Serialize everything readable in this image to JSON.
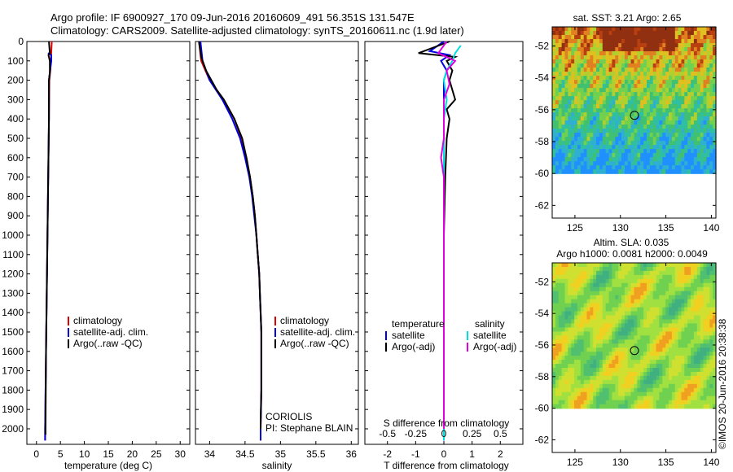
{
  "title": {
    "line1": "Argo profile: IF 6900927_170 09-Jun-2016 20160609_491 56.351S 131.547E",
    "line2": "Climatology: CARS2009. Satellite-adjusted climatology: synTS_20160611.nc (1.9d later)"
  },
  "chart_data": [
    {
      "type": "line",
      "panel": "temperature",
      "xlabel": "temperature (deg C)",
      "ylabel": "",
      "xlim": [
        -2,
        32
      ],
      "ylim": [
        2080,
        0
      ],
      "xticks": [
        0,
        5,
        10,
        15,
        20,
        25,
        30
      ],
      "yticks": [
        0,
        100,
        200,
        300,
        400,
        500,
        600,
        700,
        800,
        900,
        1000,
        1100,
        1200,
        1300,
        1400,
        1500,
        1600,
        1700,
        1800,
        1900,
        2000
      ],
      "legend": [
        "climatology",
        "satellite-adj. clim.",
        "Argo(..raw -QC)"
      ],
      "legend_placement": "center-right",
      "series": [
        {
          "name": "climatology",
          "color": "#e00000",
          "points": [
            [
              3.2,
              0
            ],
            [
              3.1,
              50
            ],
            [
              3.0,
              100
            ],
            [
              2.9,
              150
            ],
            [
              2.7,
              200
            ],
            [
              2.6,
              400
            ],
            [
              2.4,
              800
            ],
            [
              2.2,
              1200
            ],
            [
              2.0,
              1600
            ],
            [
              1.8,
              2000
            ],
            [
              1.8,
              2060
            ]
          ]
        },
        {
          "name": "satellite-adj. clim.",
          "color": "#0000e0",
          "points": [
            [
              2.4,
              60
            ],
            [
              3.1,
              70
            ],
            [
              3.1,
              100
            ],
            [
              2.8,
              160
            ],
            [
              2.6,
              200
            ],
            [
              2.6,
              400
            ],
            [
              2.4,
              800
            ],
            [
              2.2,
              1200
            ],
            [
              2.0,
              1600
            ],
            [
              1.8,
              2000
            ],
            [
              1.8,
              2060
            ]
          ]
        },
        {
          "name": "Argo(..raw -QC)",
          "color": "#000000",
          "points": [
            [
              2.6,
              0
            ],
            [
              2.8,
              60
            ],
            [
              2.5,
              70
            ],
            [
              2.8,
              100
            ],
            [
              2.8,
              160
            ],
            [
              2.6,
              200
            ],
            [
              2.6,
              400
            ],
            [
              2.4,
              800
            ],
            [
              2.2,
              1200
            ],
            [
              2.0,
              1600
            ],
            [
              1.9,
              2000
            ],
            [
              1.9,
              2030
            ]
          ]
        }
      ]
    },
    {
      "type": "line",
      "panel": "salinity",
      "xlabel": "salinity",
      "ylabel": "",
      "xlim": [
        33.8,
        36.1
      ],
      "ylim": [
        2080,
        0
      ],
      "xticks": [
        34,
        34.5,
        35,
        35.5,
        36
      ],
      "legend": [
        "climatology",
        "satellite-adj. clim.",
        "Argo(..raw -QC)"
      ],
      "legend_placement": "center-right",
      "annotations": [
        "CORIOLIS",
        "PI: Stephane BLAIN"
      ],
      "series": [
        {
          "name": "climatology",
          "color": "#e00000",
          "points": [
            [
              33.85,
              0
            ],
            [
              33.88,
              100
            ],
            [
              34.0,
              200
            ],
            [
              34.2,
              300
            ],
            [
              34.35,
              400
            ],
            [
              34.45,
              500
            ],
            [
              34.52,
              600
            ],
            [
              34.57,
              700
            ],
            [
              34.61,
              800
            ],
            [
              34.64,
              900
            ],
            [
              34.66,
              1000
            ],
            [
              34.68,
              1100
            ],
            [
              34.7,
              1200
            ],
            [
              34.71,
              1300
            ],
            [
              34.72,
              1400
            ],
            [
              34.73,
              1500
            ],
            [
              34.73,
              1600
            ],
            [
              34.73,
              1800
            ],
            [
              34.72,
              2000
            ],
            [
              34.72,
              2060
            ]
          ]
        },
        {
          "name": "satellite-adj. clim.",
          "color": "#0000e0",
          "points": [
            [
              33.87,
              0
            ],
            [
              33.9,
              100
            ],
            [
              34.0,
              200
            ],
            [
              34.18,
              300
            ],
            [
              34.32,
              400
            ],
            [
              34.43,
              500
            ],
            [
              34.5,
              600
            ],
            [
              34.56,
              700
            ],
            [
              34.6,
              800
            ],
            [
              34.63,
              900
            ],
            [
              34.66,
              1000
            ],
            [
              34.68,
              1100
            ],
            [
              34.7,
              1200
            ],
            [
              34.71,
              1300
            ],
            [
              34.72,
              1400
            ],
            [
              34.73,
              1500
            ],
            [
              34.73,
              1600
            ],
            [
              34.73,
              1800
            ],
            [
              34.72,
              2000
            ],
            [
              34.72,
              2060
            ]
          ]
        },
        {
          "name": "Argo(..raw -QC)",
          "color": "#000000",
          "points": [
            [
              33.85,
              0
            ],
            [
              33.88,
              80
            ],
            [
              33.95,
              150
            ],
            [
              34.1,
              250
            ],
            [
              34.2,
              300
            ],
            [
              34.35,
              400
            ],
            [
              34.46,
              500
            ],
            [
              34.52,
              600
            ],
            [
              34.57,
              700
            ],
            [
              34.61,
              800
            ],
            [
              34.64,
              900
            ],
            [
              34.66,
              1000
            ],
            [
              34.68,
              1100
            ],
            [
              34.7,
              1200
            ],
            [
              34.71,
              1300
            ],
            [
              34.72,
              1400
            ],
            [
              34.73,
              1500
            ],
            [
              34.73,
              1600
            ],
            [
              34.73,
              1800
            ],
            [
              34.72,
              1950
            ],
            [
              34.72,
              2000
            ]
          ]
        }
      ]
    },
    {
      "type": "line",
      "panel": "difference",
      "xlabel": "T difference from climatology",
      "xlabel_top": "S difference from climatology",
      "xlim": [
        -2.8,
        2.8
      ],
      "ylim": [
        2080,
        0
      ],
      "xticks_T": [
        -2,
        -1,
        0,
        1,
        2
      ],
      "xticks_S": [
        -0.5,
        -0.25,
        0,
        0.25,
        0.5
      ],
      "legend_temperature": {
        "heading": "temperature",
        "items": [
          "satellite",
          "Argo(-adj)"
        ]
      },
      "legend_salinity": {
        "heading": "salinity",
        "items": [
          "satellite",
          "Argo(-adj)"
        ]
      },
      "legend_placement": "center",
      "series": [
        {
          "name": "temperature satellite",
          "color": "#0000e0",
          "points": [
            [
              0,
              0
            ],
            [
              -0.5,
              50
            ],
            [
              0.2,
              70
            ],
            [
              -0.1,
              100
            ],
            [
              0.1,
              150
            ],
            [
              0,
              200
            ],
            [
              0,
              300
            ],
            [
              0,
              500
            ],
            [
              0,
              1000
            ],
            [
              0,
              1500
            ],
            [
              0,
              2060
            ]
          ]
        },
        {
          "name": "temperature Argo(-adj)",
          "color": "#000000",
          "points": [
            [
              0.2,
              0
            ],
            [
              -0.9,
              60
            ],
            [
              0.4,
              80
            ],
            [
              0.1,
              100
            ],
            [
              0.3,
              150
            ],
            [
              0.2,
              200
            ],
            [
              0.4,
              300
            ],
            [
              0.1,
              350
            ],
            [
              0.2,
              400
            ],
            [
              0.1,
              500
            ],
            [
              0.05,
              700
            ],
            [
              0,
              1000
            ],
            [
              0,
              1500
            ],
            [
              0,
              2000
            ]
          ]
        },
        {
          "name": "salinity satellite",
          "color": "#00e0e0",
          "points": [
            [
              0.6,
              20
            ],
            [
              0.4,
              60
            ],
            [
              0.3,
              100
            ],
            [
              0.1,
              150
            ],
            [
              0,
              200
            ],
            [
              0.1,
              300
            ],
            [
              0,
              400
            ],
            [
              0,
              700
            ],
            [
              0,
              1000
            ],
            [
              0,
              1500
            ],
            [
              0,
              2060
            ]
          ]
        },
        {
          "name": "salinity Argo(-adj)",
          "color": "#e000e0",
          "points": [
            [
              0.1,
              0
            ],
            [
              -0.2,
              60
            ],
            [
              0.4,
              100
            ],
            [
              0.1,
              150
            ],
            [
              0.2,
              220
            ],
            [
              0,
              300
            ],
            [
              0,
              500
            ],
            [
              -0.1,
              600
            ],
            [
              0,
              700
            ],
            [
              0,
              1000
            ],
            [
              0,
              1500
            ],
            [
              0,
              2000
            ]
          ]
        }
      ]
    },
    {
      "type": "heatmap",
      "panel": "sst-map",
      "title": "sat. SST: 3.21  Argo: 2.65",
      "xlim": [
        122.5,
        140.5
      ],
      "ylim": [
        -62.8,
        -50.8
      ],
      "xticks": [
        125,
        130,
        135,
        140
      ],
      "yticks": [
        -52,
        -54,
        -56,
        -58,
        -60,
        -62
      ],
      "marker": {
        "lon": 131.547,
        "lat": -56.351
      },
      "data_south_limit": -60
    },
    {
      "type": "heatmap",
      "panel": "sla-map",
      "title": "Altim. SLA: 0.035",
      "subtitle": "Argo h1000: 0.0081 h2000: 0.0049",
      "xlim": [
        122.5,
        140.5
      ],
      "ylim": [
        -62.8,
        -50.8
      ],
      "xticks": [
        125,
        130,
        135,
        140
      ],
      "yticks": [
        -52,
        -54,
        -56,
        -58,
        -60,
        -62
      ],
      "marker": {
        "lon": 131.547,
        "lat": -56.351
      },
      "data_south_limit": -60
    }
  ],
  "watermark": "©IMOS 20-Jun-2016 20:38:38",
  "colors": {
    "frame": "#000000",
    "background": "#ffffff"
  }
}
